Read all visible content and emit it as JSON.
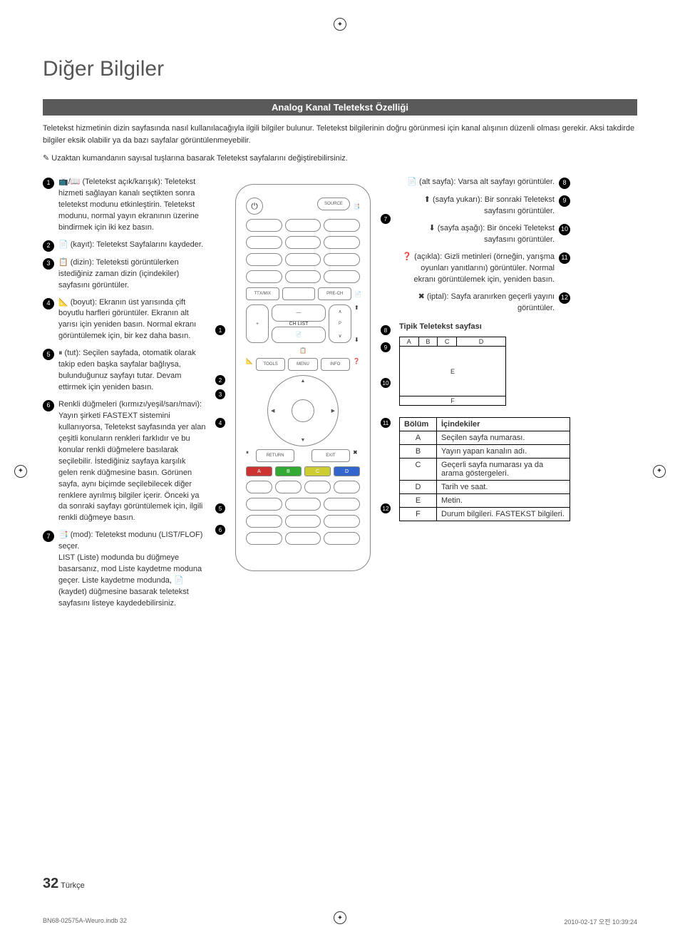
{
  "title": "Diğer Bilgiler",
  "section_title": "Analog Kanal Teletekst Özelliği",
  "intro": "Teletekst hizmetinin dizin sayfasında nasıl kullanılacağıyla ilgili bilgiler bulunur. Teletekst bilgilerinin doğru görünmesi için kanal alışının düzenli olması gerekir. Aksi takdirde bilgiler eksik olabilir ya da bazı sayfalar görüntülenmeyebilir.",
  "note": "Uzaktan kumandanın sayısal tuşlarına basarak Teletekst sayfalarını değiştirebilirsiniz.",
  "left_items": [
    {
      "n": "1",
      "text": "📺/📖 (Teletekst açık/karışık): Teletekst hizmeti sağlayan kanalı seçtikten sonra teletekst modunu etkinleştirin. Teletekst modunu, normal yayın ekranının üzerine bindirmek için iki kez basın."
    },
    {
      "n": "2",
      "text": "📄 (kayıt): Teletekst Sayfalarını kaydeder."
    },
    {
      "n": "3",
      "text": "📋 (dizin): Teleteksti görüntülerken istediğiniz zaman dizin (içindekiler) sayfasını görüntüler."
    },
    {
      "n": "4",
      "text": "📐 (boyut): Ekranın üst yarısında çift boyutlu harfleri görüntüler. Ekranın alt yarısı için yeniden basın. Normal ekranı görüntülemek için, bir kez daha basın."
    },
    {
      "n": "5",
      "text": "⏸ (tut): Seçilen sayfada, otomatik olarak takip eden başka sayfalar bağlıysa, bulunduğunuz sayfayı tutar. Devam ettirmek için yeniden basın."
    },
    {
      "n": "6",
      "text": "Renkli düğmeleri (kırmızı/yeşil/sarı/mavi): Yayın şirketi FASTEXT sistemini kullanıyorsa, Teletekst sayfasında yer alan çeşitli konuların renkleri farklıdır ve bu konular renkli düğmelere basılarak seçilebilir. İstediğiniz sayfaya karşılık gelen renk düğmesine basın. Görünen sayfa, aynı biçimde seçilebilecek diğer renklere ayrılmış bilgiler içerir. Önceki ya da sonraki sayfayı görüntülemek için, ilgili renkli düğmeye basın."
    },
    {
      "n": "7",
      "text": "📑 (mod): Teletekst modunu (LIST/FLOF) seçer.\nLIST (Liste) modunda bu düğmeye basarsanız, mod Liste kaydetme moduna geçer. Liste kaydetme modunda, 📄 (kaydet) düğmesine basarak teletekst sayfasını listeye kaydedebilirsiniz."
    }
  ],
  "right_items": [
    {
      "n": "8",
      "text": "📄 (alt sayfa): Varsa alt sayfayı görüntüler."
    },
    {
      "n": "9",
      "text": "⬆ (sayfa yukarı): Bir sonraki Teletekst sayfasını görüntüler."
    },
    {
      "n": "10",
      "text": "⬇ (sayfa aşağı): Bir önceki Teletekst sayfasını görüntüler."
    },
    {
      "n": "11",
      "text": "❓ (açıkla): Gizli metinleri (örneğin, yarışma oyunları yanıtlarını) görüntüler. Normal ekranı görüntülemek için, yeniden basın."
    },
    {
      "n": "12",
      "text": "✖ (iptal): Sayfa aranırken geçerli yayını görüntüler."
    }
  ],
  "tt_heading": "Tipik Teletekst sayfası",
  "tt_labels": {
    "A": "A",
    "B": "B",
    "C": "C",
    "D": "D",
    "E": "E",
    "F": "F"
  },
  "table": {
    "head": [
      "Bölüm",
      "İçindekiler"
    ],
    "rows": [
      [
        "A",
        "Seçilen sayfa numarası."
      ],
      [
        "B",
        "Yayın yapan kanalın adı."
      ],
      [
        "C",
        "Geçerli sayfa numarası ya da arama göstergeleri."
      ],
      [
        "D",
        "Tarih ve saat."
      ],
      [
        "E",
        "Metin."
      ],
      [
        "F",
        "Durum bilgileri. FASTEKST bilgileri."
      ]
    ]
  },
  "remote_labels": {
    "source": "SOURCE",
    "ttx": "TTX/MIX",
    "prech": "PRE-CH",
    "chlist": "CH LIST",
    "p": "P",
    "menu": "MENU",
    "tools": "TOOLS",
    "info": "INFO",
    "return": "RETURN",
    "exit": "EXIT",
    "a": "A",
    "b": "B",
    "c": "C",
    "d": "D"
  },
  "page_number": "32",
  "page_lang": "Türkçe",
  "footer_left": "BN68-02575A-Weuro.indb   32",
  "footer_right": "2010-02-17   오전 10:39:24"
}
